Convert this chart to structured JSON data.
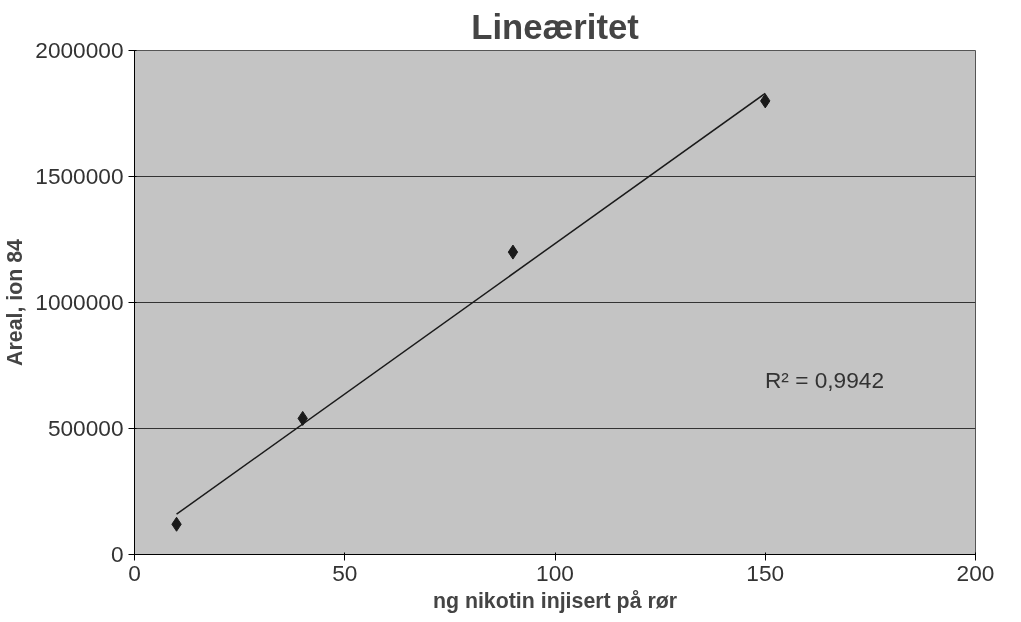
{
  "chart_data": {
    "type": "scatter",
    "title": "Lineæritet",
    "xlabel": "ng nikotin injisert på rør",
    "ylabel": "Areal, ion 84",
    "x": [
      10,
      40,
      90,
      150
    ],
    "series": [
      {
        "color": "#1a1a1a",
        "marker": "diamond",
        "values": [
          120000,
          540000,
          1200000,
          1800000
        ]
      },
      {
        "type": "line",
        "color": "#1a1a1a",
        "x": [
          10,
          150
        ],
        "values": [
          160000,
          1830000
        ]
      }
    ],
    "annotations": [
      "R² = 0,9942"
    ],
    "xlim": [
      0,
      200
    ],
    "xticks": [
      0,
      50,
      100,
      150,
      200
    ],
    "ylim": [
      0,
      2000000
    ],
    "yticks": [
      0,
      500000,
      1000000,
      1500000,
      2000000
    ],
    "grid": "y"
  }
}
